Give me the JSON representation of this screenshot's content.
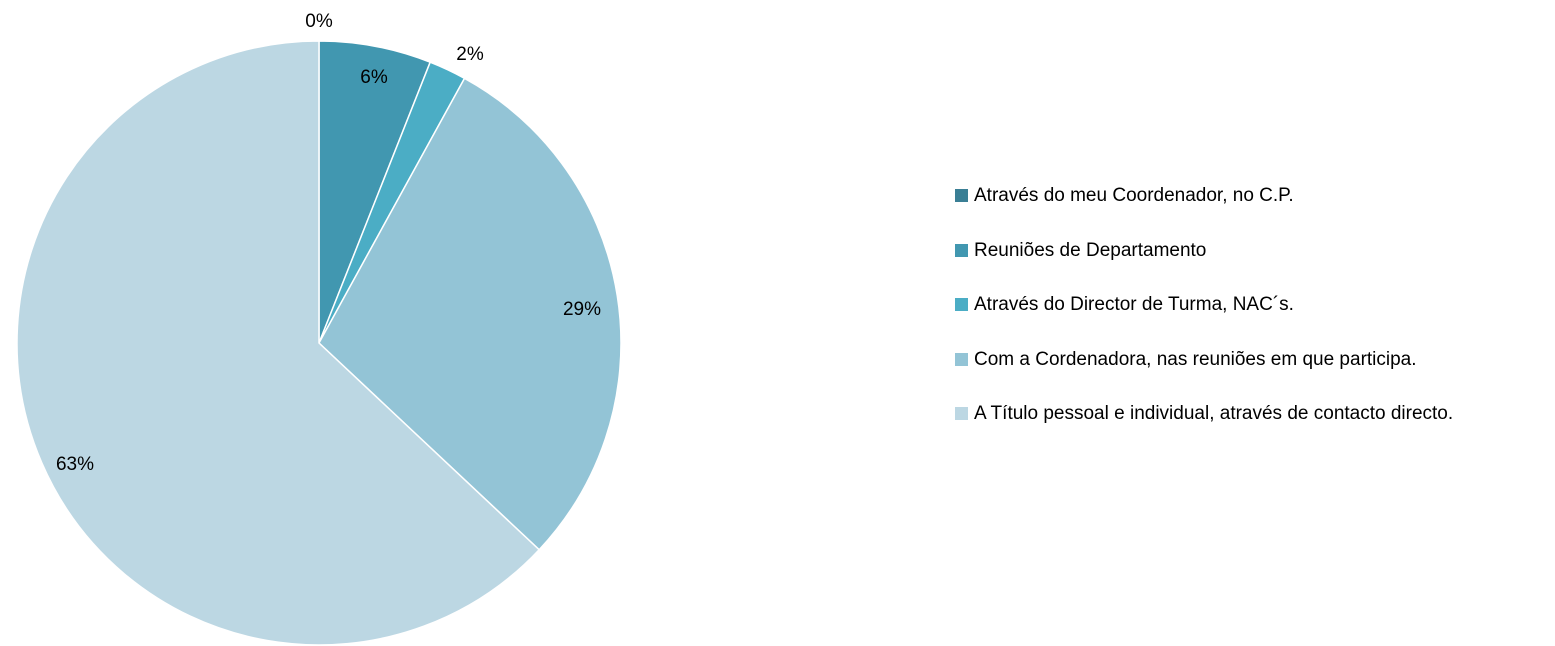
{
  "chart_data": {
    "type": "pie",
    "categories": [
      "Através do meu Coordenador, no C.P.",
      "Reuniões de Departamento",
      "Através do Director de Turma, NAC´s.",
      "Com a Cordenadora, nas reuniões em que participa.",
      "A Título pessoal e individual, através de contacto directo."
    ],
    "values": [
      0,
      6,
      2,
      29,
      63
    ],
    "value_labels": [
      "0%",
      "6%",
      "2%",
      "29%",
      "63%"
    ],
    "colors": [
      "#3a7f95",
      "#4197b0",
      "#4badc5",
      "#93c4d6",
      "#bcd7e3"
    ],
    "legend": "right"
  }
}
